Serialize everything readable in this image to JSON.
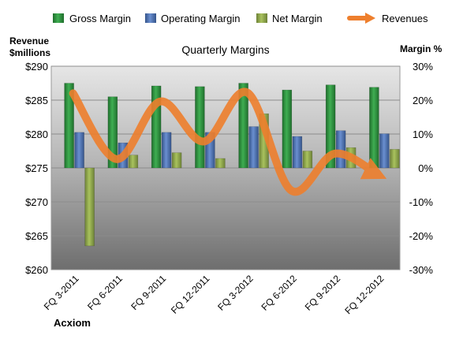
{
  "chart_data": {
    "type": "bar",
    "title": "Quarterly Margins",
    "company": "Acxiom",
    "y_left_label_line1": "Revenue",
    "y_left_label_line2": "$millions",
    "y_right_label": "Margin %",
    "categories": [
      "FQ 3-2011",
      "FQ 6-2011",
      "FQ 9-2011",
      "FQ 12-2011",
      "FQ 3-2012",
      "FQ 6-2012",
      "FQ 9-2012",
      "FQ 12-2012"
    ],
    "y_left_ticks": [
      "$290",
      "$285",
      "$280",
      "$275",
      "$270",
      "$265",
      "$260"
    ],
    "y_right_ticks": [
      "30%",
      "20%",
      "10%",
      "0%",
      "-10%",
      "-20%",
      "-30%"
    ],
    "y_left_range": [
      260,
      290
    ],
    "y_right_range": [
      -30,
      30
    ],
    "series": [
      {
        "name": "Gross Margin",
        "type": "bar",
        "axis": "right",
        "color": "#2e8b3e",
        "values": [
          25.0,
          21.0,
          24.2,
          24.0,
          25.0,
          23.0,
          24.5,
          23.8
        ]
      },
      {
        "name": "Operating Margin",
        "type": "bar",
        "axis": "right",
        "color": "#4a6fb0",
        "values": [
          10.5,
          7.4,
          10.5,
          10.5,
          12.2,
          9.3,
          11.0,
          10.1
        ]
      },
      {
        "name": "Net Margin",
        "type": "bar",
        "axis": "right",
        "color": "#8aa24a",
        "values": [
          -23.0,
          3.8,
          4.5,
          2.8,
          16.0,
          5.0,
          6.0,
          5.5
        ]
      },
      {
        "name": "Revenues",
        "type": "line",
        "axis": "left",
        "color": "#ee7f2d",
        "values": [
          286.0,
          276.3,
          284.8,
          278.9,
          286.1,
          271.7,
          277.1,
          274.0
        ]
      }
    ]
  }
}
